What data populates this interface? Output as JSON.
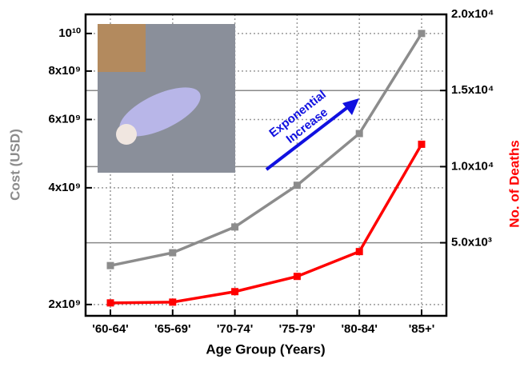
{
  "chart_data": {
    "type": "line",
    "categories": [
      "'60-64'",
      "'65-69'",
      "'70-74'",
      "'75-79'",
      "'80-84'",
      "'85+'"
    ],
    "xlabel": "Age Group (Years)",
    "ylabel": "Cost (USD)",
    "y2label": "No. of Deaths",
    "annotation": "Exponential Increase",
    "yscale": "log",
    "grid": true,
    "ylim": [
      1870000000,
      11200000000
    ],
    "yticks": [
      {
        "value": 2000000000,
        "label": "2x10⁹"
      },
      {
        "value": 4000000000,
        "label": "4x10⁹"
      },
      {
        "value": 6000000000,
        "label": "6x10⁹"
      },
      {
        "value": 8000000000,
        "label": "8x10⁹"
      },
      {
        "value": 10000000000,
        "label": "10¹⁰"
      }
    ],
    "y2lim": [
      200,
      20000
    ],
    "y2ticks": [
      {
        "value": 5000,
        "label": "5.0x10³"
      },
      {
        "value": 10000,
        "label": "1.0x10⁴"
      },
      {
        "value": 15000,
        "label": "1.5x10⁴"
      },
      {
        "value": 20000,
        "label": "2.0x10⁴"
      }
    ],
    "series": [
      {
        "name": "Cost (USD)",
        "color": "#8c8c8c",
        "values": [
          2520000000,
          2720000000,
          3170000000,
          4060000000,
          5520000000,
          10000000000
        ]
      },
      {
        "name": "No. of Deaths",
        "color": "#ff0000",
        "axis": "y2",
        "values": [
          1050,
          1100,
          1790,
          2790,
          4420,
          11470
        ]
      }
    ]
  }
}
